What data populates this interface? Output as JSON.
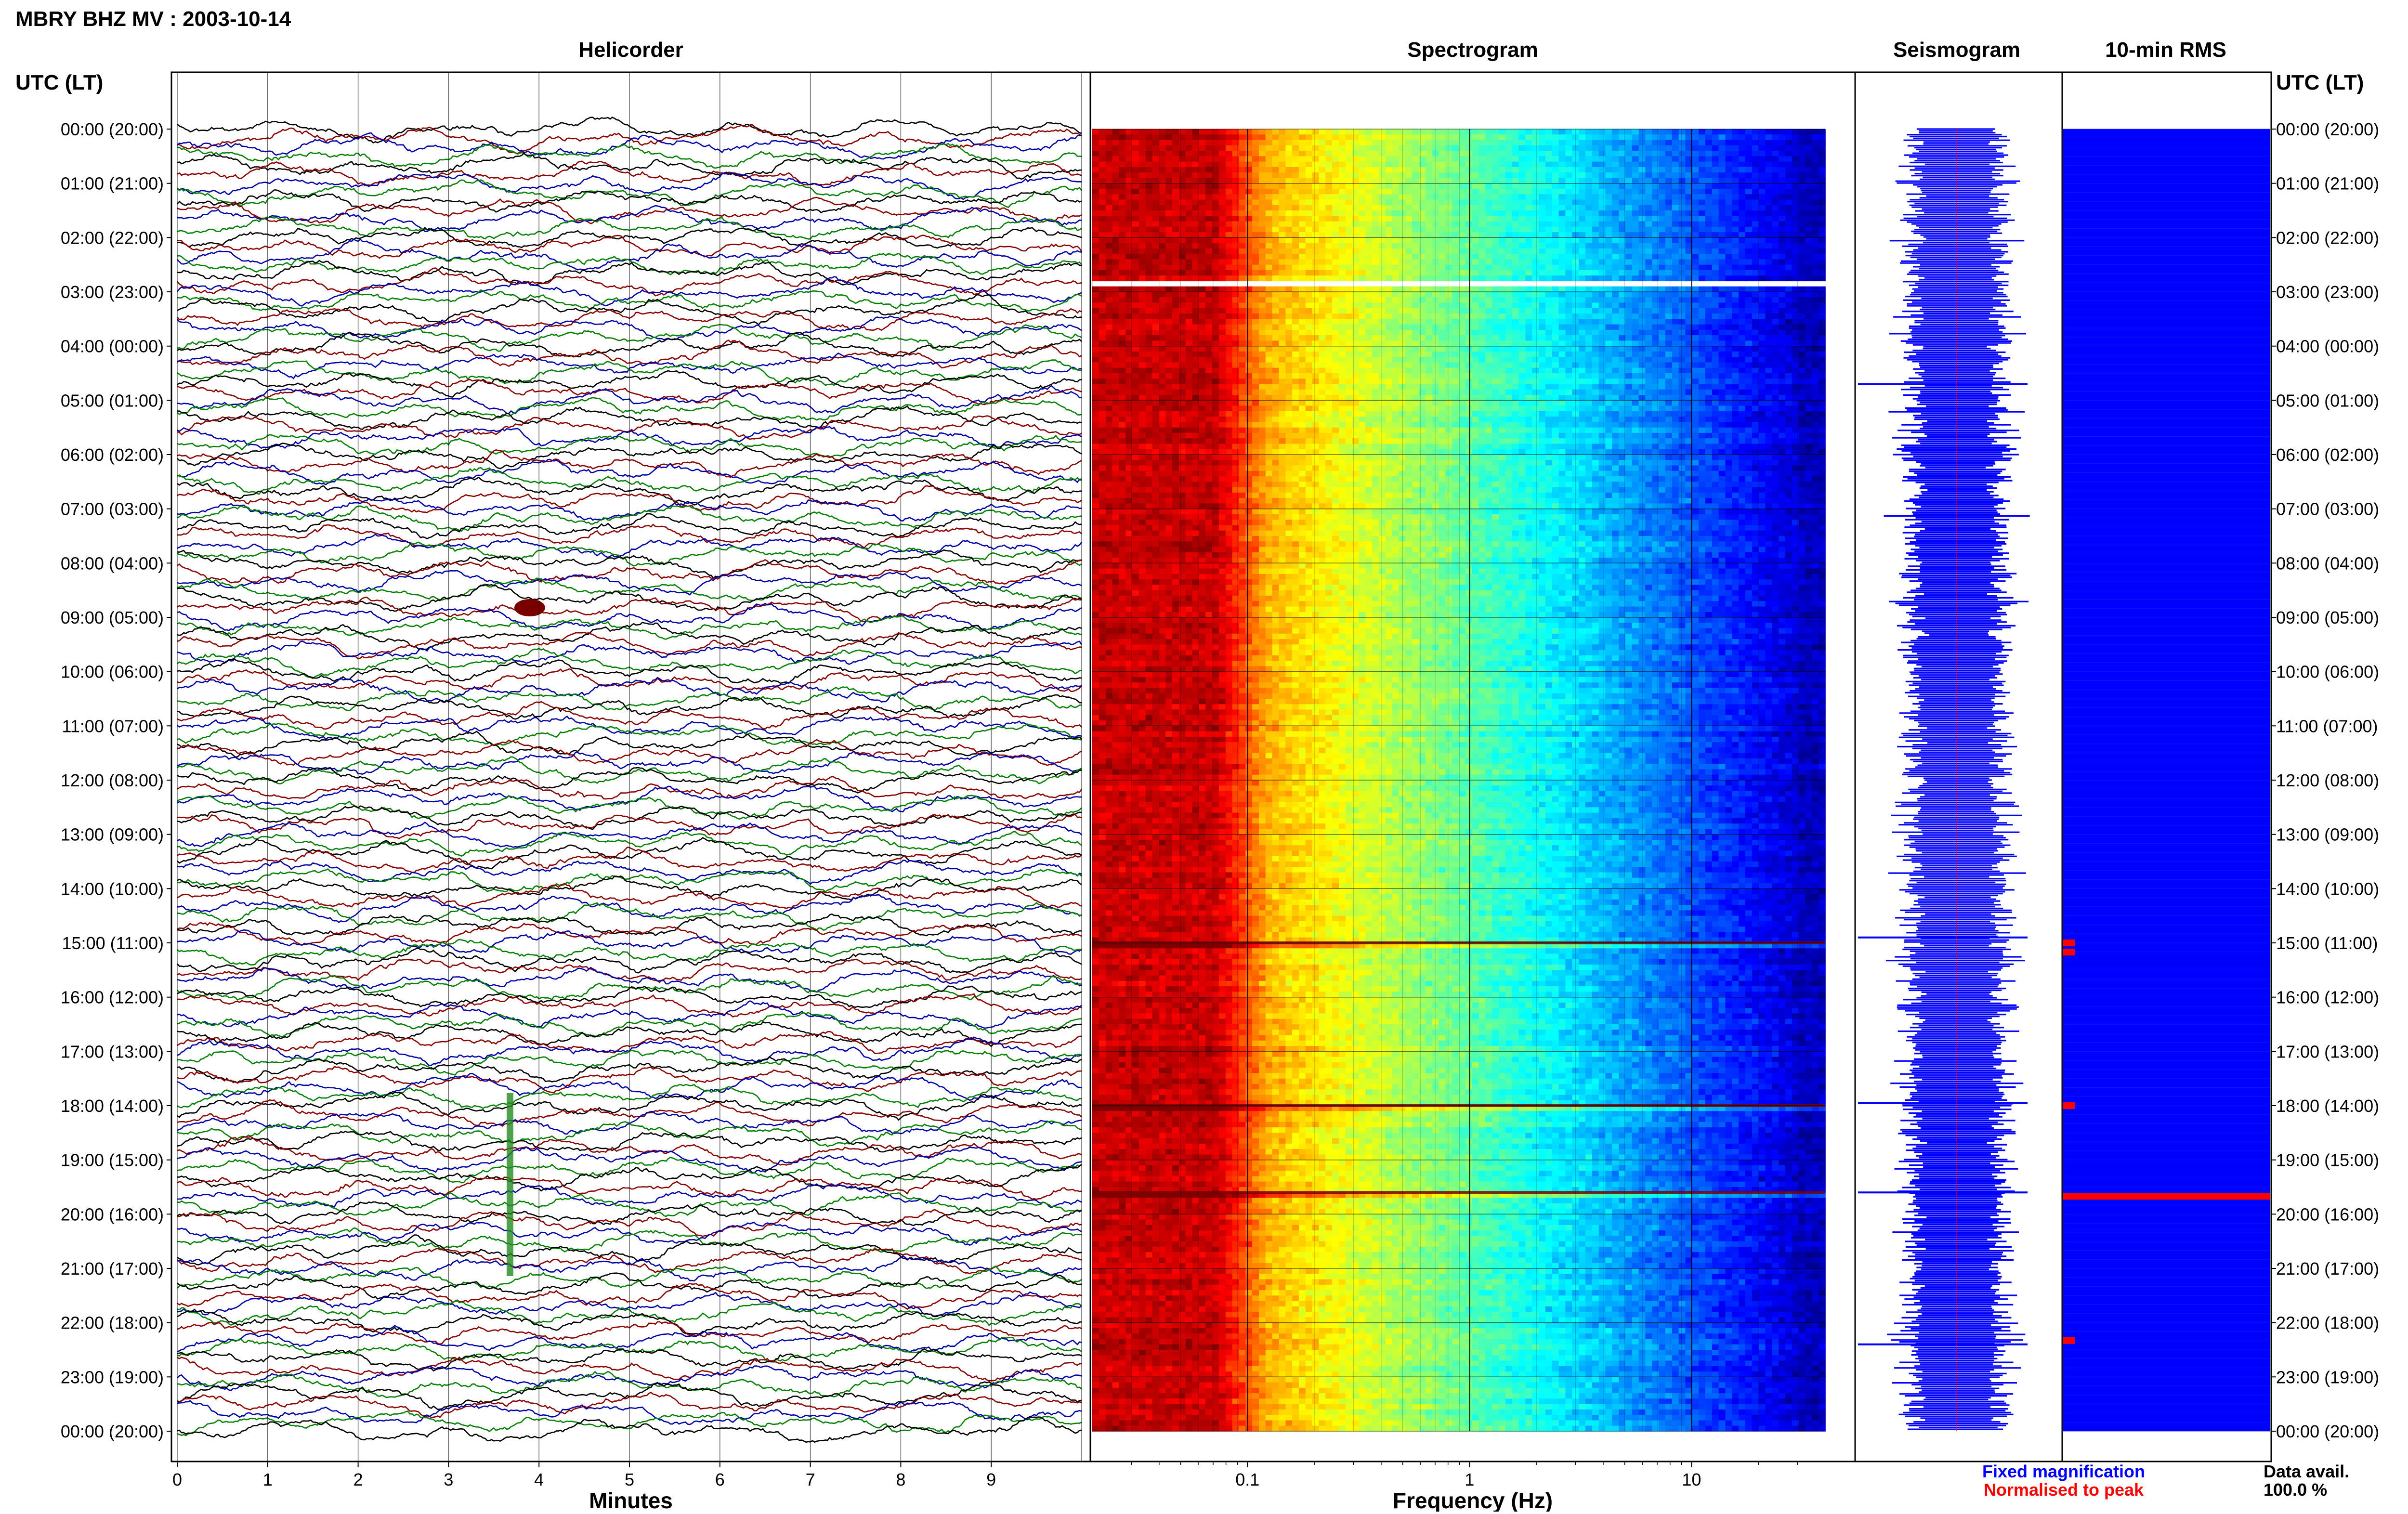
{
  "title": "MBRY BHZ MV : 2003-10-14",
  "panel_titles": {
    "helicorder": "Helicorder",
    "spectrogram": "Spectrogram",
    "seismogram": "Seismogram",
    "rms": "10-min RMS"
  },
  "utc_header_left": "UTC (LT)",
  "utc_header_right": "UTC (LT)",
  "time_labels": [
    "00:00 (20:00)",
    "01:00 (21:00)",
    "02:00 (22:00)",
    "03:00 (23:00)",
    "04:00 (00:00)",
    "05:00 (01:00)",
    "06:00 (02:00)",
    "07:00 (03:00)",
    "08:00 (04:00)",
    "09:00 (05:00)",
    "10:00 (06:00)",
    "11:00 (07:00)",
    "12:00 (08:00)",
    "13:00 (09:00)",
    "14:00 (10:00)",
    "15:00 (11:00)",
    "16:00 (12:00)",
    "17:00 (13:00)",
    "18:00 (14:00)",
    "19:00 (15:00)",
    "20:00 (16:00)",
    "21:00 (17:00)",
    "22:00 (18:00)",
    "23:00 (19:00)",
    "00:00 (20:00)"
  ],
  "x_axes": {
    "helicorder": {
      "label": "Minutes",
      "ticks": [
        "0",
        "1",
        "2",
        "3",
        "4",
        "5",
        "6",
        "7",
        "8",
        "9"
      ]
    },
    "spectrogram": {
      "label": "Frequency (Hz)",
      "ticks": [
        "0.1",
        "1",
        "10"
      ],
      "scale": "log"
    }
  },
  "legend": {
    "fixed": "Fixed magnification",
    "normalised": "Normalised to peak",
    "fixed_color": "#0000ff",
    "normalised_color": "#ff0000"
  },
  "data_avail": {
    "label": "Data avail.",
    "value": "100.0 %"
  },
  "chart_data": [
    {
      "type": "line",
      "panel": "helicorder",
      "xlabel": "Minutes",
      "xlim": [
        0,
        10
      ],
      "rows": 144,
      "minutes_per_row": 10,
      "series_colors": [
        "#000000",
        "#8b0000",
        "#0000aa",
        "#008000"
      ],
      "grid": true
    },
    {
      "type": "heatmap",
      "panel": "spectrogram",
      "xlabel": "Frequency (Hz)",
      "xscale": "log",
      "xlim": [
        0.02,
        40
      ],
      "colormap": "jet",
      "gap_hour": 2.8,
      "event_hours": [
        15.0,
        18.0,
        19.6
      ]
    },
    {
      "type": "line",
      "panel": "seismogram",
      "color": "#0000ff",
      "spike_hours": [
        4.7,
        14.9,
        17.95,
        19.6,
        22.4
      ]
    },
    {
      "type": "bar",
      "panel": "rms",
      "color": "#0000ff",
      "highlight_color": "#ff0000",
      "red_bar_hours": [
        15.0,
        15.17,
        18.0,
        19.67,
        22.33
      ],
      "ylim": [
        0,
        24
      ]
    }
  ]
}
